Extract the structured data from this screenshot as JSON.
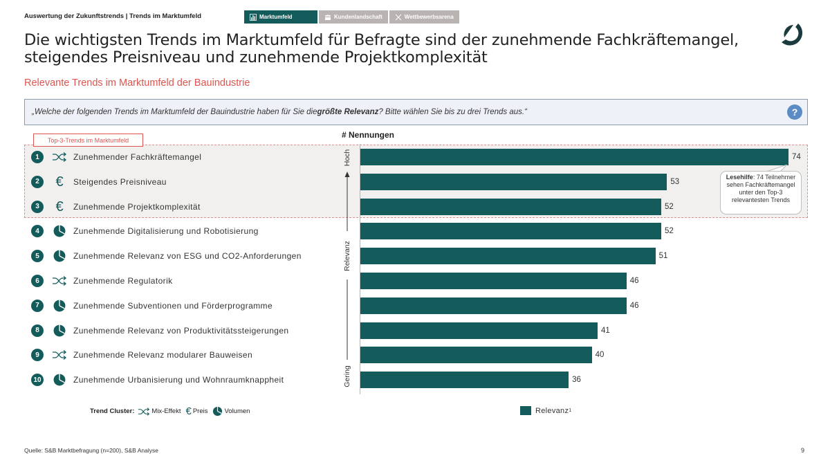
{
  "header": {
    "breadcrumb": "Auswertung der Zukunftstrends | Trends im Marktumfeld",
    "tabs": [
      {
        "label": "Marktumfeld",
        "icon": "bar-chart-icon",
        "active": true
      },
      {
        "label": "Kundenlandschaft",
        "icon": "people-icon",
        "active": false
      },
      {
        "label": "Wettbewerbsarena",
        "icon": "swords-icon",
        "active": false
      }
    ],
    "logo": "brand-logo"
  },
  "headline": "Die wichtigsten Trends im Marktumfeld für Befragte sind der zunehmende Fachkräftemangel, steigendes Preisniveau und zunehmende Projektkomplexität",
  "subtitle": "Relevante Trends im Marktumfeld der Bauindustrie",
  "question": {
    "prefix": "„Welche der folgenden Trends im Marktumfeld der Bauindustrie haben für Sie die ",
    "bold": "größte Relevanz",
    "suffix": "? Bitte wählen Sie bis zu drei Trends aus.“",
    "help_icon": "?"
  },
  "top3_label": "Top-3-Trends im Marktumfeld",
  "callout": {
    "bold": "Lesehilfe",
    "text": ": 74 Teilnehmer sehen Fachkräftemangel unter den Top-3 relevantesten Trends"
  },
  "legend": {
    "cluster_title": "Trend Cluster:",
    "clusters": [
      {
        "icon": "shuffle-icon",
        "label": "Mix-Effekt"
      },
      {
        "icon": "euro-icon",
        "label": "Preis"
      },
      {
        "icon": "pie-chart-icon",
        "label": "Volumen"
      }
    ],
    "series_label": "Relevanz",
    "series_sup": "1"
  },
  "colors": {
    "bar": "#145c5c",
    "accent_red": "#dc5550",
    "help_blue": "#5b8cc4"
  },
  "footer": {
    "source": "Quelle: S&B Marktbefragung (n=200), S&B Analyse",
    "page": "9"
  },
  "chart_data": {
    "type": "bar",
    "orientation": "horizontal",
    "title": "# Nennungen",
    "xlabel": "# Nennungen",
    "ylabel": "Relevanz",
    "y_axis_ends": {
      "top": "Hoch",
      "bottom": "Gering"
    },
    "categories": [
      "Zunehmender Fachkräftemangel",
      "Steigendes Preisniveau",
      "Zunehmende Projektkomplexität",
      "Zunehmende Digitalisierung und Robotisierung",
      "Zunehmende Relevanz von ESG und CO2-Anforderungen",
      "Zunehmende Regulatorik",
      "Zunehmende Subventionen und Förderprogramme",
      "Zunehmende Relevanz von Produktivitätssteigerungen",
      "Zunehmende Relevanz modularer Bauweisen",
      "Zunehmende Urbanisierung und Wohnraumknappheit"
    ],
    "ranks": [
      "1",
      "2",
      "3",
      "4",
      "5",
      "6",
      "7",
      "8",
      "9",
      "10"
    ],
    "cluster": [
      "mix",
      "preis",
      "preis",
      "volumen",
      "volumen",
      "mix",
      "volumen",
      "volumen",
      "mix",
      "volumen"
    ],
    "series": [
      {
        "name": "Relevanz",
        "values": [
          74,
          53,
          52,
          52,
          51,
          46,
          46,
          41,
          40,
          36
        ]
      }
    ],
    "xlim": [
      0,
      74
    ],
    "grid": false,
    "legend": "bottom"
  }
}
